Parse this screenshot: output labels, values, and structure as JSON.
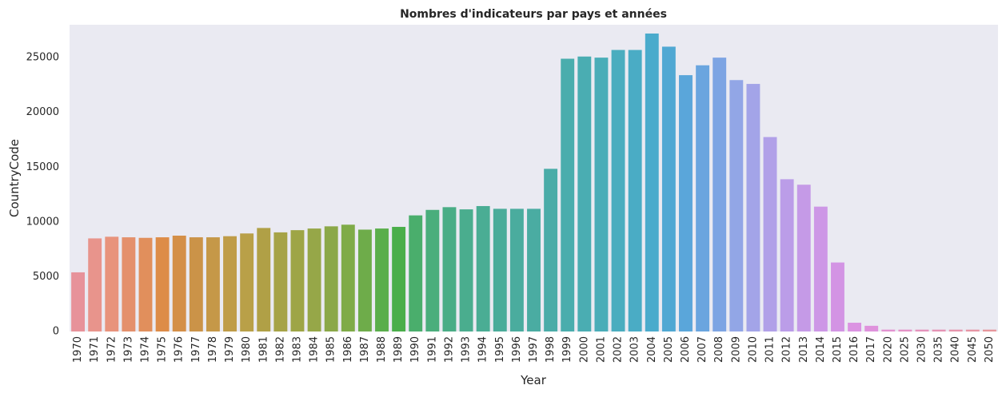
{
  "chart_data": {
    "type": "bar",
    "title": "Nombres d'indicateurs par pays et années",
    "xlabel": "Year",
    "ylabel": "CountryCode",
    "ylim": [
      0,
      28000
    ],
    "yticks": [
      0,
      5000,
      10000,
      15000,
      20000,
      25000
    ],
    "grid": false,
    "background": "#eaeaf2",
    "categories": [
      "1970",
      "1971",
      "1972",
      "1973",
      "1974",
      "1975",
      "1976",
      "1977",
      "1978",
      "1979",
      "1980",
      "1981",
      "1982",
      "1983",
      "1984",
      "1985",
      "1986",
      "1987",
      "1988",
      "1989",
      "1990",
      "1991",
      "1992",
      "1993",
      "1994",
      "1995",
      "1996",
      "1997",
      "1998",
      "1999",
      "2000",
      "2001",
      "2002",
      "2003",
      "2004",
      "2005",
      "2006",
      "2007",
      "2008",
      "2009",
      "2010",
      "2011",
      "2012",
      "2013",
      "2014",
      "2015",
      "2016",
      "2017",
      "2020",
      "2025",
      "2030",
      "2035",
      "2040",
      "2045",
      "2050"
    ],
    "values": [
      5400,
      8500,
      8650,
      8600,
      8550,
      8600,
      8750,
      8600,
      8600,
      8700,
      8950,
      9450,
      9050,
      9250,
      9400,
      9600,
      9750,
      9300,
      9400,
      9550,
      10600,
      11100,
      11350,
      11150,
      11450,
      11200,
      11200,
      11200,
      14850,
      24900,
      25100,
      25000,
      25700,
      25700,
      27200,
      26000,
      23400,
      24300,
      25000,
      22950,
      22600,
      17750,
      13900,
      13400,
      11400,
      6300,
      800,
      520,
      170,
      170,
      170,
      170,
      170,
      170,
      170
    ],
    "colors": [
      "#e7929a",
      "#e8948c",
      "#e8937c",
      "#e4906c",
      "#e18f5c",
      "#dd8c48",
      "#d48f48",
      "#cb9348",
      "#c59848",
      "#bf9c48",
      "#b9a048",
      "#b0a046",
      "#a6a347",
      "#9ea546",
      "#96a748",
      "#8ba848",
      "#7fab48",
      "#6eac4a",
      "#5aae4b",
      "#4aae4a",
      "#4aae6c",
      "#4aae7c",
      "#4aad86",
      "#4aad8e",
      "#4aad94",
      "#4aac9a",
      "#4aac9e",
      "#4aaca2",
      "#4aaca8",
      "#4aadad",
      "#4aadb2",
      "#4aadb8",
      "#4aadbf",
      "#4aacc5",
      "#4aabcc",
      "#50a8d3",
      "#5aa6da",
      "#6aa5df",
      "#7da4e3",
      "#92a6e6",
      "#a3a4e8",
      "#b1a0e8",
      "#bb9de8",
      "#c59ae7",
      "#cd97e6",
      "#d394e4",
      "#db93e2",
      "#df92dc",
      "#e292d0",
      "#e492c6",
      "#e593bc",
      "#e593b4",
      "#e694ac",
      "#e695a4",
      "#e6969c"
    ]
  }
}
